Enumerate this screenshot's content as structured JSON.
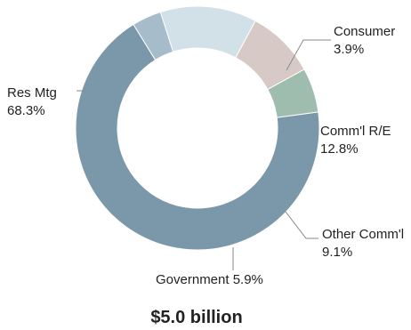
{
  "chart_data": {
    "type": "pie",
    "donut": true,
    "total_label": "$5.0 billion",
    "slices": [
      {
        "label": "Res Mtg",
        "value": 68.3,
        "value_label": "68.3%",
        "color": "#7B98AB"
      },
      {
        "label": "Consumer",
        "value": 3.9,
        "value_label": "3.9%",
        "color": "#A6BCCB"
      },
      {
        "label": "Comm'l R/E",
        "value": 12.8,
        "value_label": "12.8%",
        "color": "#D2E0E7"
      },
      {
        "label": "Other Comm'l",
        "value": 9.1,
        "value_label": "9.1%",
        "color": "#D7C9C5"
      },
      {
        "label": "Government",
        "value": 5.9,
        "value_label": "5.9%",
        "color": "#9FBDAE"
      }
    ]
  }
}
